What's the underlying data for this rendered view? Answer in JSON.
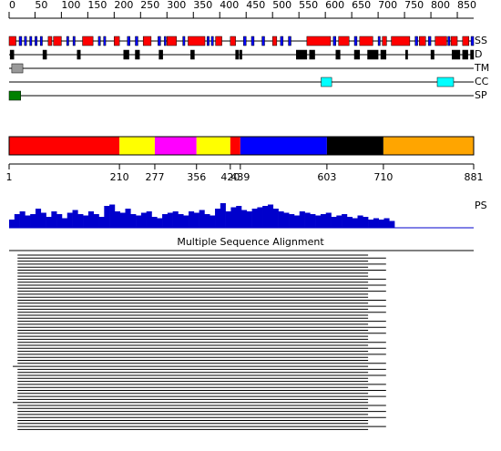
{
  "ruler": {
    "ticks": [
      0,
      50,
      100,
      150,
      200,
      250,
      300,
      350,
      400,
      450,
      500,
      550,
      600,
      650,
      700,
      750,
      800,
      850
    ],
    "length": 881
  },
  "tracks": {
    "ss": {
      "label": "SS",
      "helix": {
        "color": "#ff0000",
        "segments": [
          [
            1,
            14
          ],
          [
            75,
            82
          ],
          [
            85,
            100
          ],
          [
            140,
            160
          ],
          [
            200,
            210
          ],
          [
            255,
            270
          ],
          [
            300,
            318
          ],
          [
            340,
            372
          ],
          [
            392,
            404
          ],
          [
            420,
            430
          ],
          [
            500,
            508
          ],
          [
            565,
            610
          ],
          [
            625,
            645
          ],
          [
            665,
            690
          ],
          [
            708,
            716
          ],
          [
            725,
            760
          ],
          [
            778,
            790
          ],
          [
            808,
            830
          ],
          [
            838,
            850
          ],
          [
            860,
            872
          ]
        ]
      },
      "strand": {
        "color": "#0000ff",
        "segments": [
          [
            20,
            25
          ],
          [
            30,
            34
          ],
          [
            40,
            44
          ],
          [
            50,
            54
          ],
          [
            60,
            64
          ],
          [
            110,
            114
          ],
          [
            122,
            126
          ],
          [
            170,
            174
          ],
          [
            180,
            184
          ],
          [
            225,
            230
          ],
          [
            240,
            245
          ],
          [
            283,
            288
          ],
          [
            295,
            298
          ],
          [
            330,
            334
          ],
          [
            376,
            380
          ],
          [
            384,
            388
          ],
          [
            445,
            450
          ],
          [
            460,
            465
          ],
          [
            480,
            485
          ],
          [
            515,
            520
          ],
          [
            530,
            535
          ],
          [
            615,
            620
          ],
          [
            655,
            660
          ],
          [
            700,
            704
          ],
          [
            770,
            775
          ],
          [
            795,
            800
          ],
          [
            832,
            836
          ],
          [
            876,
            881
          ]
        ]
      }
    },
    "d": {
      "label": "D",
      "color": "#000000",
      "segments": [
        [
          3,
          10
        ],
        [
          65,
          72
        ],
        [
          130,
          136
        ],
        [
          218,
          228
        ],
        [
          240,
          248
        ],
        [
          285,
          292
        ],
        [
          345,
          352
        ],
        [
          430,
          436
        ],
        [
          438,
          442
        ],
        [
          545,
          565
        ],
        [
          570,
          580
        ],
        [
          620,
          628
        ],
        [
          655,
          665
        ],
        [
          680,
          700
        ],
        [
          705,
          715
        ],
        [
          752,
          756
        ],
        [
          800,
          806
        ],
        [
          840,
          855
        ],
        [
          860,
          870
        ],
        [
          875,
          881
        ]
      ]
    },
    "tm": {
      "label": "TM",
      "color": "#999999",
      "segments": [
        [
          6,
          27
        ]
      ]
    },
    "cc": {
      "label": "CC",
      "color": "#00ffff",
      "segments": [
        [
          592,
          612
        ],
        [
          812,
          843
        ]
      ]
    },
    "sp": {
      "label": "SP",
      "color": "#008000",
      "segments": [
        [
          1,
          23
        ]
      ]
    }
  },
  "domains": {
    "bounds": [
      1,
      210,
      277,
      356,
      420,
      439,
      603,
      710,
      881
    ],
    "colors": [
      "#ff0000",
      "#ffff00",
      "#ff00ff",
      "#ffff00",
      "#ff0000",
      "#0000ff",
      "#000000",
      "#ffa500"
    ]
  },
  "ps": {
    "label": "PS",
    "color": "#0000cc",
    "step": 10,
    "values": [
      0.3,
      0.5,
      0.6,
      0.45,
      0.5,
      0.7,
      0.55,
      0.4,
      0.6,
      0.5,
      0.35,
      0.55,
      0.65,
      0.5,
      0.45,
      0.6,
      0.5,
      0.4,
      0.8,
      0.85,
      0.6,
      0.55,
      0.7,
      0.5,
      0.45,
      0.55,
      0.6,
      0.4,
      0.35,
      0.5,
      0.55,
      0.6,
      0.5,
      0.45,
      0.6,
      0.55,
      0.65,
      0.5,
      0.45,
      0.7,
      0.9,
      0.6,
      0.75,
      0.8,
      0.65,
      0.6,
      0.7,
      0.75,
      0.8,
      0.85,
      0.7,
      0.6,
      0.55,
      0.5,
      0.45,
      0.6,
      0.55,
      0.5,
      0.45,
      0.5,
      0.55,
      0.4,
      0.45,
      0.5,
      0.4,
      0.35,
      0.45,
      0.4,
      0.3,
      0.35,
      0.3,
      0.35,
      0.25
    ]
  },
  "msa": {
    "title": "Multiple Sequence Alignment",
    "full": [
      1,
      881
    ],
    "rows": [
      [
        17,
        681
      ],
      [
        17,
        715
      ],
      [
        17,
        681
      ],
      [
        17,
        715
      ],
      [
        17,
        681
      ],
      [
        17,
        715
      ],
      [
        17,
        681
      ],
      [
        17,
        681
      ],
      [
        17,
        715
      ],
      [
        17,
        681
      ],
      [
        17,
        715
      ],
      [
        17,
        681
      ],
      [
        17,
        715
      ],
      [
        17,
        681
      ],
      [
        17,
        681
      ],
      [
        17,
        715
      ],
      [
        17,
        681
      ],
      [
        17,
        715
      ],
      [
        17,
        681
      ],
      [
        17,
        715
      ],
      [
        17,
        681
      ],
      [
        17,
        681
      ],
      [
        17,
        715
      ],
      [
        17,
        681
      ],
      [
        17,
        715
      ],
      [
        17,
        681
      ],
      [
        17,
        715
      ],
      [
        17,
        681
      ],
      [
        17,
        681
      ],
      [
        17,
        715
      ],
      [
        17,
        681
      ],
      [
        17,
        715
      ],
      [
        17,
        681
      ],
      [
        17,
        715
      ],
      [
        17,
        681
      ],
      [
        17,
        681
      ],
      [
        17,
        715
      ],
      [
        8,
        681
      ],
      [
        17,
        715
      ],
      [
        17,
        681
      ],
      [
        17,
        715
      ],
      [
        17,
        681
      ],
      [
        17,
        681
      ],
      [
        17,
        715
      ],
      [
        17,
        681
      ],
      [
        17,
        715
      ],
      [
        17,
        681
      ],
      [
        17,
        715
      ],
      [
        17,
        681
      ],
      [
        8,
        681
      ],
      [
        17,
        715
      ],
      [
        17,
        681
      ],
      [
        17,
        715
      ],
      [
        17,
        681
      ],
      [
        17,
        715
      ],
      [
        17,
        681
      ],
      [
        17,
        681
      ],
      [
        17,
        715
      ],
      [
        17,
        681
      ]
    ]
  }
}
